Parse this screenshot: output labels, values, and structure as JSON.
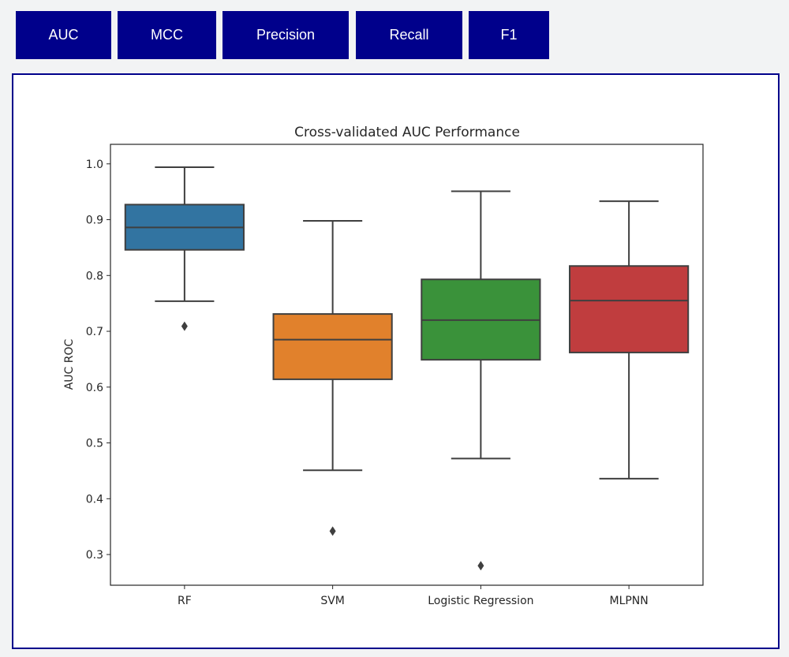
{
  "tabs": [
    {
      "label": "AUC",
      "active": true
    },
    {
      "label": "MCC",
      "active": false
    },
    {
      "label": "Precision",
      "active": false
    },
    {
      "label": "Recall",
      "active": false
    },
    {
      "label": "F1",
      "active": false
    }
  ],
  "colors": {
    "tab_bg": "#00008b",
    "tab_text": "#ffffff",
    "panel_border": "#00008b",
    "series": [
      "#3274a1",
      "#e1812c",
      "#3a923a",
      "#c03d3e"
    ]
  },
  "chart_data": {
    "type": "boxplot",
    "title": "Cross-validated AUC Performance",
    "xlabel": "",
    "ylabel": "AUC ROC",
    "ylim": [
      0.245,
      1.035
    ],
    "yticks": [
      0.3,
      0.4,
      0.5,
      0.6,
      0.7,
      0.8,
      0.9,
      1.0
    ],
    "ytick_labels": [
      "0.3",
      "0.4",
      "0.5",
      "0.6",
      "0.7",
      "0.8",
      "0.9",
      "1.0"
    ],
    "categories": [
      "RF",
      "SVM",
      "Logistic Regression",
      "MLPNN"
    ],
    "boxes": [
      {
        "whisker_low": 0.754,
        "q1": 0.846,
        "median": 0.886,
        "q3": 0.927,
        "whisker_high": 0.994,
        "outliers": [
          0.709
        ]
      },
      {
        "whisker_low": 0.451,
        "q1": 0.614,
        "median": 0.685,
        "q3": 0.731,
        "whisker_high": 0.898,
        "outliers": [
          0.342
        ]
      },
      {
        "whisker_low": 0.472,
        "q1": 0.649,
        "median": 0.72,
        "q3": 0.793,
        "whisker_high": 0.951,
        "outliers": [
          0.28
        ]
      },
      {
        "whisker_low": 0.436,
        "q1": 0.662,
        "median": 0.755,
        "q3": 0.817,
        "whisker_high": 0.933,
        "outliers": []
      }
    ],
    "grid": false,
    "legend": "none"
  }
}
